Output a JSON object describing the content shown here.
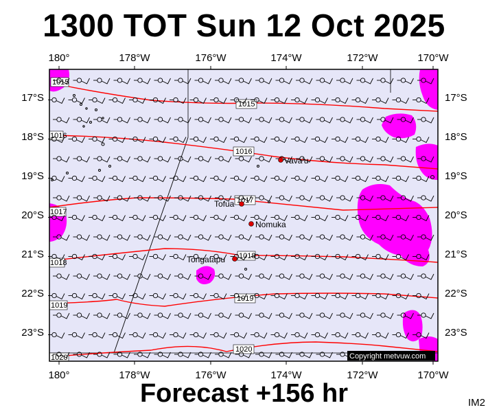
{
  "title": "1300 TOT Sun 12 Oct 2025",
  "subtitle": "Forecast +156 hr",
  "image_code": "IM2",
  "copyright": "Copyright metvuw.com",
  "colors": {
    "background_shade": "#e6e6f8",
    "rain_shade": "#ff00ff",
    "isobar": "#ff0000",
    "place_marker": "#dd0000",
    "wind_barb": "#000000"
  },
  "axes": {
    "lon_labels_top": [
      "180°",
      "178°W",
      "176°W",
      "174°W",
      "172°W",
      "170°W"
    ],
    "lon_labels_bottom": [
      "180°",
      "178°W",
      "176°W",
      "174°W",
      "172°W",
      "170°W"
    ],
    "lat_labels_left": [
      "17°S",
      "18°S",
      "19°S",
      "20°S",
      "21°S",
      "22°S",
      "23°S"
    ],
    "lat_labels_right": [
      "17°S",
      "18°S",
      "19°S",
      "20°S",
      "21°S",
      "22°S",
      "23°S"
    ]
  },
  "isobars": [
    {
      "label": "1015"
    },
    {
      "label": "1015"
    },
    {
      "label": "1016"
    },
    {
      "label": "1016"
    },
    {
      "label": "1017"
    },
    {
      "label": "1017"
    },
    {
      "label": "1018"
    },
    {
      "label": "1018"
    },
    {
      "label": "1019"
    },
    {
      "label": "1019"
    },
    {
      "label": "1020"
    },
    {
      "label": "1020"
    }
  ],
  "places": [
    {
      "name": "Vava'u",
      "lon": -174.0,
      "lat": -18.65
    },
    {
      "name": "Tofua",
      "lon": -175.05,
      "lat": -19.75
    },
    {
      "name": "Nomuka",
      "lon": -174.8,
      "lat": -20.25
    },
    {
      "name": "Tongatapu",
      "lon": -175.2,
      "lat": -21.15
    }
  ],
  "wind": {
    "grid_lon_step_deg": 0.45,
    "grid_lat_step_deg": 0.53,
    "barb": "calm circle with short barb"
  }
}
